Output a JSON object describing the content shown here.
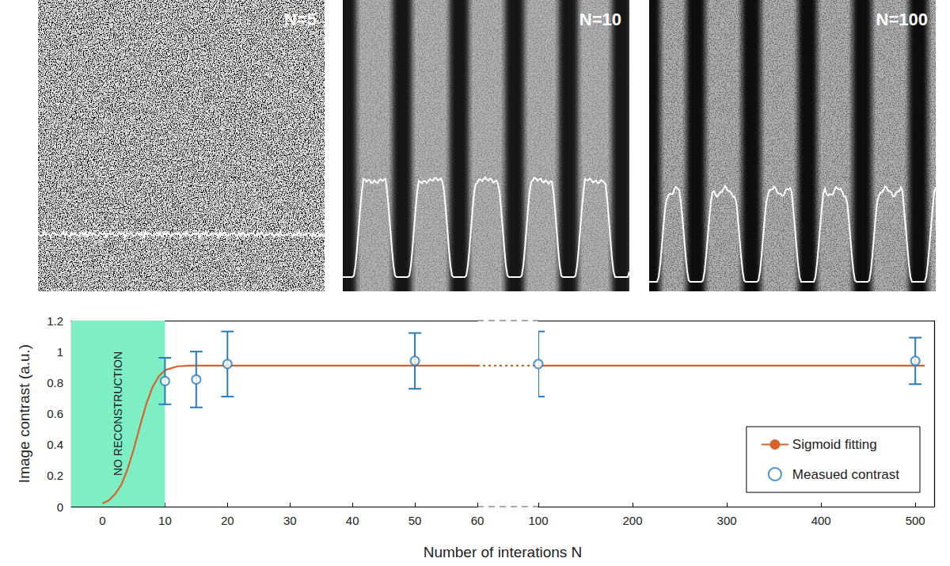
{
  "panels": [
    {
      "label": "N=5"
    },
    {
      "label": "N=10"
    },
    {
      "label": "N=100"
    }
  ],
  "chart_data": {
    "type": "scatter",
    "x_label": "Number of interations N",
    "y_label": "Image contrast (a.u.)",
    "xlim": [
      [
        -5,
        60
      ],
      [
        100,
        520
      ]
    ],
    "xticks": [
      [
        0,
        10,
        20,
        30,
        40,
        50,
        60
      ],
      [
        100,
        200,
        300,
        400,
        500
      ]
    ],
    "ylim": [
      0,
      1.2
    ],
    "yticks": [
      0,
      0.2,
      0.4,
      0.6,
      0.8,
      1,
      1.2
    ],
    "grid": false,
    "legend": "lower right",
    "shaded_region": {
      "from": -5,
      "to": 10,
      "label": "NO RECONSTRUCTION",
      "color": "#7eefc5"
    },
    "series": [
      {
        "name": "Sigmoid fitting",
        "type": "line",
        "color": "#d9622b",
        "line_style": "solid",
        "x": [
          0,
          1,
          2,
          3,
          4,
          5,
          6,
          7,
          8,
          9,
          10,
          12,
          14,
          16,
          20,
          30,
          40,
          50,
          60,
          100,
          200,
          300,
          400,
          510
        ],
        "values": [
          0.02,
          0.04,
          0.08,
          0.14,
          0.24,
          0.37,
          0.52,
          0.66,
          0.77,
          0.84,
          0.88,
          0.905,
          0.91,
          0.91,
          0.91,
          0.91,
          0.91,
          0.91,
          0.91,
          0.91,
          0.91,
          0.91,
          0.91,
          0.91
        ]
      },
      {
        "name": "Measued contrast",
        "type": "scatter",
        "color": "#2b7bba",
        "marker": "circle",
        "x": [
          10,
          15,
          20,
          50,
          100,
          500
        ],
        "values": [
          0.81,
          0.82,
          0.92,
          0.94,
          0.92,
          0.94
        ],
        "errors": [
          0.15,
          0.18,
          0.21,
          0.18,
          0.21,
          0.15
        ]
      }
    ]
  }
}
